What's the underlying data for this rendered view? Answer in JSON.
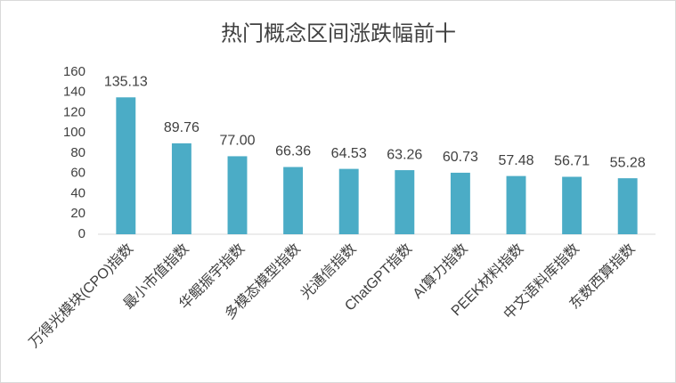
{
  "chart_data": {
    "type": "bar",
    "title": "热门概念区间涨跌幅前十",
    "categories": [
      "万得光模块(CPO)指数",
      "最小市值指数",
      "华鲲振宇指数",
      "多模态模型指数",
      "光通信指数",
      "ChatGPT指数",
      "AI算力指数",
      "PEEK材料指数",
      "中文语料库指数",
      "东数西算指数"
    ],
    "values": [
      135.13,
      89.76,
      77.0,
      66.36,
      64.53,
      63.26,
      60.73,
      57.48,
      56.71,
      55.28
    ],
    "value_labels": [
      "135.13",
      "89.76",
      "77.00",
      "66.36",
      "64.53",
      "63.26",
      "60.73",
      "57.48",
      "56.71",
      "55.28"
    ],
    "color": "#4bacc6",
    "ylim": [
      0,
      160
    ],
    "yticks": [
      0,
      20,
      40,
      60,
      80,
      100,
      120,
      140,
      160
    ],
    "grid": false
  }
}
